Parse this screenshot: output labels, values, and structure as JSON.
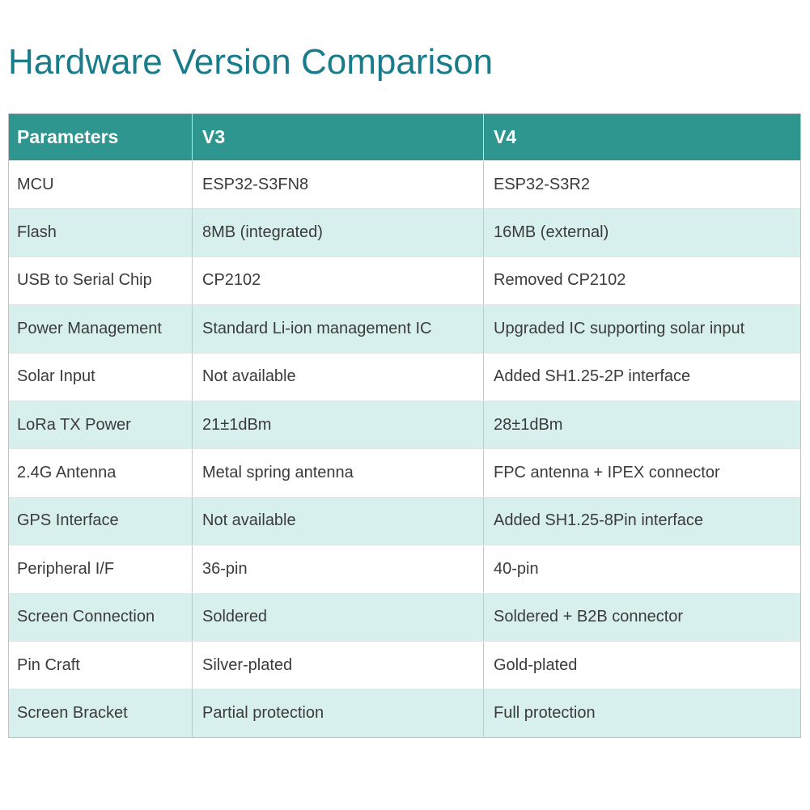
{
  "page": {
    "title": "Hardware Version Comparison"
  },
  "colors": {
    "title": "#187c8a",
    "header_bg": "#2e968e",
    "header_text": "#ffffff",
    "row_bg": "#ffffff",
    "row_alt_bg": "#d7f0ee",
    "body_text": "#3b3b3b"
  },
  "table": {
    "columns": [
      "Parameters",
      "V3",
      "V4"
    ],
    "rows": [
      {
        "param": "MCU",
        "v3": "ESP32-S3FN8",
        "v4": "ESP32-S3R2"
      },
      {
        "param": "Flash",
        "v3": "8MB (integrated)",
        "v4": "16MB (external)"
      },
      {
        "param": "USB to Serial Chip",
        "v3": "CP2102",
        "v4": "Removed CP2102"
      },
      {
        "param": "Power Management",
        "v3": "Standard Li-ion management IC",
        "v4": "Upgraded IC supporting solar input"
      },
      {
        "param": "Solar Input",
        "v3": "Not available",
        "v4": "Added SH1.25-2P interface"
      },
      {
        "param": "LoRa TX Power",
        "v3": "21±1dBm",
        "v4": "28±1dBm"
      },
      {
        "param": "2.4G Antenna",
        "v3": "Metal spring antenna",
        "v4": "FPC antenna + IPEX connector"
      },
      {
        "param": "GPS Interface",
        "v3": "Not available",
        "v4": "Added SH1.25-8Pin interface"
      },
      {
        "param": "Peripheral I/F",
        "v3": "36-pin",
        "v4": "40-pin"
      },
      {
        "param": "Screen Connection",
        "v3": "Soldered",
        "v4": "Soldered + B2B connector"
      },
      {
        "param": "Pin Craft",
        "v3": "Silver-plated",
        "v4": "Gold-plated"
      },
      {
        "param": "Screen Bracket",
        "v3": "Partial protection",
        "v4": "Full protection"
      }
    ]
  }
}
